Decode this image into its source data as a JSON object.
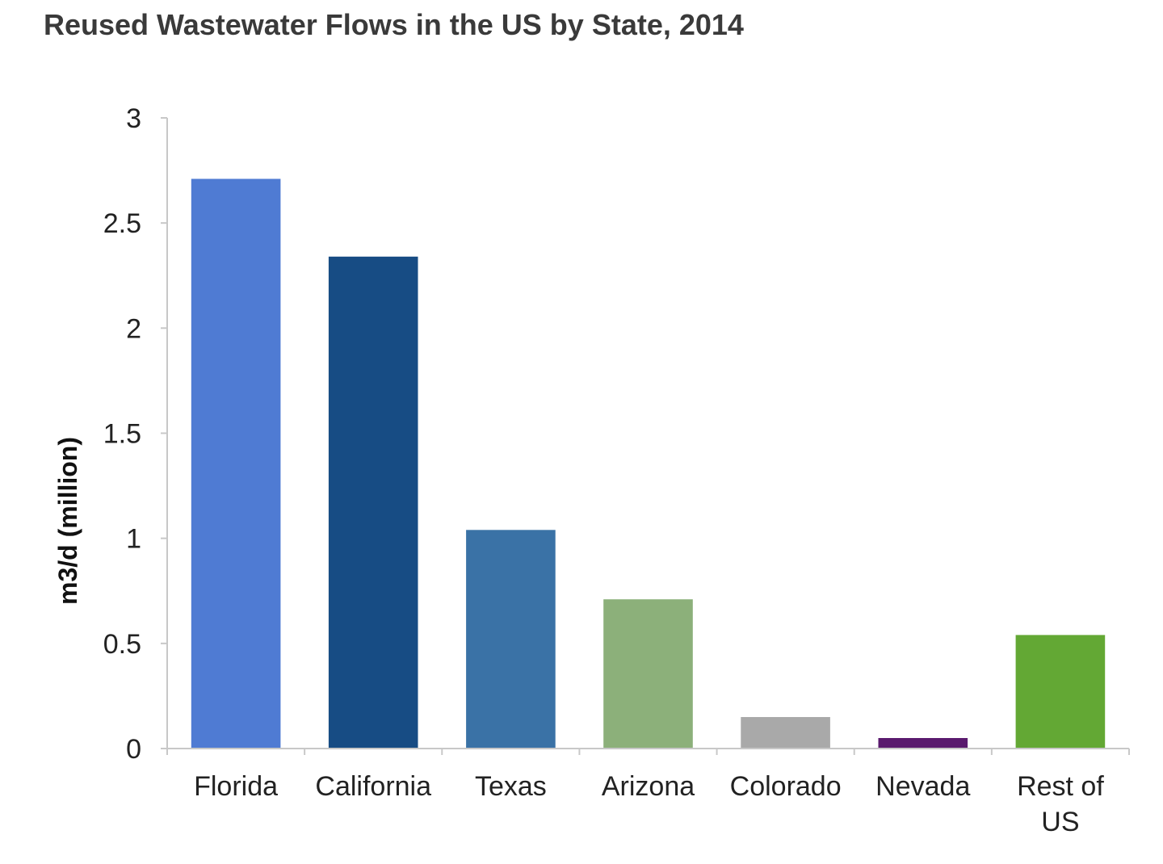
{
  "chart_data": {
    "type": "bar",
    "title": "Reused Wastewater Flows in the US by State, 2014",
    "xlabel": "",
    "ylabel": "m3/d (million)",
    "ylim": [
      0,
      3
    ],
    "yticks": [
      "0",
      "0.5",
      "1",
      "1.5",
      "2",
      "2.5",
      "3"
    ],
    "categories": [
      "Florida",
      "California",
      "Texas",
      "Arizona",
      "Colorado",
      "Nevada",
      "Rest of US"
    ],
    "category_lines": [
      [
        "Florida"
      ],
      [
        "California"
      ],
      [
        "Texas"
      ],
      [
        "Arizona"
      ],
      [
        "Colorado"
      ],
      [
        "Nevada"
      ],
      [
        "Rest of",
        "US"
      ]
    ],
    "values": [
      2.71,
      2.34,
      1.04,
      0.71,
      0.15,
      0.05,
      0.54
    ],
    "colors": [
      "#4f7bd3",
      "#174c84",
      "#3a72a6",
      "#8cb07a",
      "#a9a9a9",
      "#5a1a6e",
      "#63a834"
    ],
    "grid": false,
    "legend": "none"
  }
}
